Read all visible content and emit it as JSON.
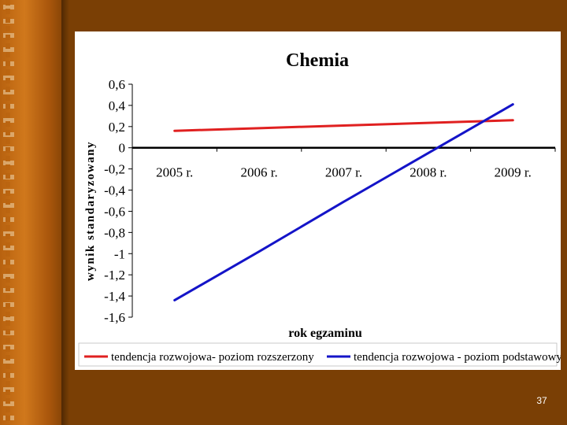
{
  "slide": {
    "page_number": "37",
    "background_color": "#7a3f05",
    "sidebar_color": "#c86f18"
  },
  "chart_data": {
    "type": "line",
    "title": "Chemia",
    "xlabel": "rok egzaminu",
    "ylabel": "wynik standaryzowany",
    "categories": [
      "2005 r.",
      "2006 r.",
      "2007 r.",
      "2008 r.",
      "2009 r."
    ],
    "ylim": [
      -1.6,
      0.6
    ],
    "yticks": [
      0.6,
      0.4,
      0.2,
      0,
      -0.2,
      -0.4,
      -0.6,
      -0.8,
      -1,
      -1.2,
      -1.4,
      -1.6
    ],
    "ytick_labels": [
      "0,6",
      "0,4",
      "0,2",
      "0",
      "-0,2",
      "-0,4",
      "-0,6",
      "-0,8",
      "-1",
      "-1,2",
      "-1,4",
      "-1,6"
    ],
    "grid": false,
    "legend_position": "bottom",
    "series": [
      {
        "name": "tendencja rozwojowa- poziom rozszerzony",
        "color": "#e02020",
        "values": [
          0.16,
          0.185,
          0.21,
          0.235,
          0.26
        ]
      },
      {
        "name": "tendencja rozwojowa - poziom podstawowy",
        "color": "#1414c8",
        "values": [
          -1.44,
          -0.98,
          -0.51,
          -0.05,
          0.41
        ]
      }
    ]
  }
}
